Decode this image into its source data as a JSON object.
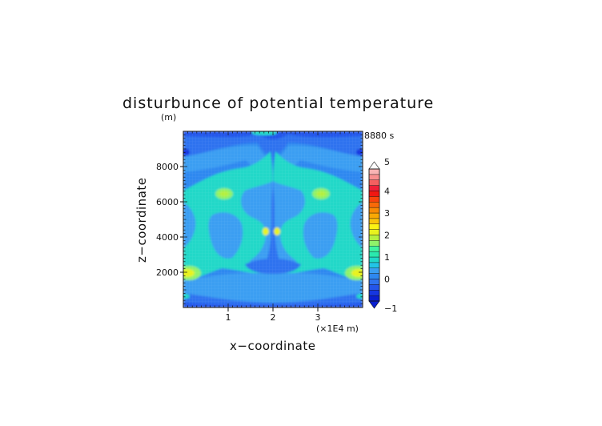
{
  "chart_data": {
    "type": "heatmap",
    "title": "disturbunce of potential temperature",
    "xlabel": "x−coordinate",
    "ylabel": "z−coordinate",
    "y_unit": "(m)",
    "x_unit": "(×1E4 m)",
    "time_label": "8880 s",
    "xlim": [
      0,
      4
    ],
    "ylim": [
      0,
      10000
    ],
    "x_ticks": [
      {
        "value": 1,
        "label": "1"
      },
      {
        "value": 2,
        "label": "2"
      },
      {
        "value": 3,
        "label": "3"
      }
    ],
    "y_ticks": [
      {
        "value": 2000,
        "label": "2000"
      },
      {
        "value": 4000,
        "label": "4000"
      },
      {
        "value": 6000,
        "label": "6000"
      },
      {
        "value": 8000,
        "label": "8000"
      }
    ],
    "colorbar": {
      "min": -1,
      "max": 5,
      "levels": [
        -1,
        -0.75,
        -0.5,
        -0.25,
        0,
        0.25,
        0.5,
        0.75,
        1,
        1.25,
        1.5,
        1.75,
        2,
        2.25,
        2.5,
        2.75,
        3,
        3.25,
        3.5,
        3.75,
        4,
        4.25,
        4.5,
        4.75,
        5
      ],
      "tick_labels": [
        {
          "value": -1,
          "label": "−1"
        },
        {
          "value": 0,
          "label": "0"
        },
        {
          "value": 1,
          "label": "1"
        },
        {
          "value": 2,
          "label": "2"
        },
        {
          "value": 3,
          "label": "3"
        },
        {
          "value": 4,
          "label": "4"
        },
        {
          "value": 5,
          "label": "5"
        }
      ],
      "colors": [
        "#0a1fd0",
        "#1636e0",
        "#2455ea",
        "#2f72ef",
        "#2e88f0",
        "#3a9ef2",
        "#22c4e6",
        "#20d8c8",
        "#2ae8ae",
        "#3ff3a0",
        "#8ff26a",
        "#b4f040",
        "#e8f21e",
        "#fdf214",
        "#fbc40a",
        "#f9a804",
        "#f88a04",
        "#f86a08",
        "#f8440c",
        "#f01812",
        "#f02038",
        "#f46060",
        "#f89090",
        "#f8b4b4"
      ],
      "under_color": "#0a1fd0",
      "over_color": "#ffffff"
    },
    "grid": false
  }
}
